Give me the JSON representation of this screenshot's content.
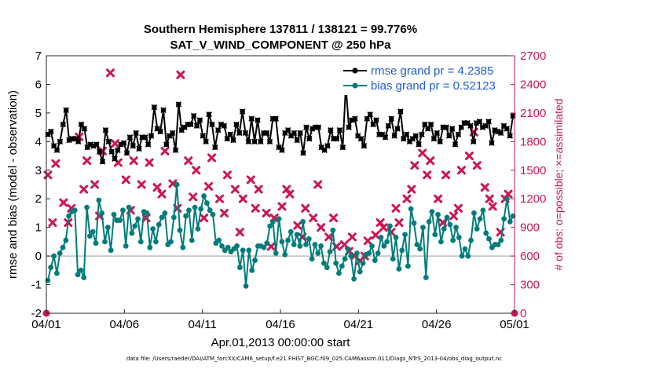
{
  "chart_data": {
    "type": "line",
    "title": "Southern Hemisphere 137811 / 138121 = 99.776%",
    "subtitle": "SAT_V_WIND_COMPONENT @ 250 hPa",
    "xlabel": "Apr.01,2013 00:00:00 start",
    "ylabel": "rmse and bias (model - observation)",
    "y2label": "# of obs: o=possible; ×=assimilated",
    "footnote": "data file: /Users/raeder/DAI/ATM_forcXX/CAM6_setup/f.e21.FHIST_BGC.f09_025.CAM6assim.011/Diags_NTrS_2013-04/obs_diag_output.nc",
    "xlim": [
      0,
      30
    ],
    "ylim": [
      -2,
      7
    ],
    "y2lim": [
      0,
      2700
    ],
    "x_ticks": [
      0,
      5,
      10,
      15,
      20,
      25,
      30
    ],
    "x_tick_labels": [
      "04/01",
      "04/06",
      "04/11",
      "04/16",
      "04/21",
      "04/26",
      "05/01"
    ],
    "y_ticks": [
      -2,
      -1,
      0,
      1,
      2,
      3,
      4,
      5,
      6,
      7
    ],
    "y_tick_labels": [
      "-2",
      "-1",
      "0",
      "1",
      "2",
      "3",
      "4",
      "5",
      "6",
      "7"
    ],
    "y2_ticks": [
      0,
      300,
      600,
      900,
      1200,
      1500,
      1800,
      2100,
      2400,
      2700
    ],
    "y2_tick_labels": [
      "0",
      "300",
      "600",
      "900",
      "1200",
      "1500",
      "1800",
      "2100",
      "2400",
      "2700"
    ],
    "legend_position": "top-right",
    "colors": {
      "rmse": "#000000",
      "bias": "#007c7c",
      "obs": "#cc1655",
      "zero": "#bdbdbd"
    },
    "series": [
      {
        "name": "rmse grand pr = 4.2385",
        "axis": "left",
        "values": [
          4.25,
          4.35,
          3.85,
          3.7,
          4.0,
          4.6,
          5.1,
          4.05,
          4.1,
          4.1,
          4.0,
          4.6,
          4.45,
          3.8,
          3.9,
          3.85,
          3.9,
          3.65,
          3.3,
          4.4,
          4.0,
          3.65,
          3.4,
          3.7,
          3.9,
          3.95,
          3.6,
          4.15,
          3.85,
          4.3,
          3.75,
          4.15,
          4.15,
          3.9,
          4.2,
          5.2,
          4.45,
          4.35,
          5.1,
          3.9,
          4.2,
          4.3,
          3.7,
          5.3,
          4.4,
          4.5,
          4.6,
          4.6,
          4.9,
          4.55,
          4.75,
          4.2,
          4.0,
          4.95,
          4.6,
          3.8,
          4.4,
          4.6,
          4.55,
          4.1,
          4.25,
          4.05,
          4.6,
          4.3,
          5.05,
          4.3,
          4.0,
          4.8,
          4.0,
          4.75,
          4.0,
          4.3,
          4.3,
          4.0,
          4.8,
          4.8,
          3.8,
          3.7,
          4.3,
          4.4,
          4.2,
          4.3,
          4.05,
          4.3,
          3.6,
          4.5,
          4.1,
          4.45,
          4.5,
          4.5,
          3.8,
          3.7,
          3.85,
          4.4,
          4.1,
          4.1,
          4.4,
          3.8,
          5.95,
          4.5,
          4.75,
          4.8,
          4.2,
          4.1,
          3.85,
          4.8,
          4.95,
          4.6,
          4.75,
          4.25,
          4.25,
          4.15,
          4.55,
          4.8,
          4.2,
          4.45,
          5.05,
          4.1,
          4.25,
          4.0,
          4.1,
          4.2,
          3.9,
          4.25,
          4.6,
          4.45,
          4.6,
          4.1,
          4.3,
          4.0,
          4.5,
          4.5,
          4.2,
          4.45,
          3.9,
          4.25,
          4.5,
          4.65,
          4.65,
          4.55,
          4.0,
          4.65,
          4.7,
          4.5,
          4.55,
          4.7,
          3.95,
          4.4,
          4.35,
          4.3,
          4.55,
          4.45,
          4.2,
          4.9
        ]
      },
      {
        "name": "bias grand pr = 0.52123",
        "axis": "left",
        "values": [
          -0.85,
          -0.4,
          0.0,
          -0.6,
          0.1,
          0.3,
          0.55,
          1.4,
          1.55,
          1.6,
          -0.65,
          -0.5,
          -0.75,
          1.7,
          0.7,
          0.85,
          0.45,
          1.95,
          1.5,
          0.5,
          1.0,
          0.2,
          1.45,
          1.25,
          1.25,
          1.6,
          0.35,
          1.7,
          0.8,
          1.05,
          1.3,
          0.5,
          1.55,
          1.5,
          0.3,
          0.95,
          0.5,
          1.1,
          1.35,
          1.5,
          0.4,
          0.5,
          1.35,
          2.5,
          0.9,
          0.3,
          1.4,
          1.6,
          0.55,
          1.7,
          0.95,
          1.65,
          2.1,
          1.85,
          1.6,
          1.45,
          0.45,
          0.55,
          0.35,
          0.2,
          0.3,
          0.15,
          0.25,
          0.35,
          -0.4,
          0.2,
          -1.05,
          0.2,
          -0.5,
          -0.15,
          0.35,
          0.35,
          0.3,
          0.45,
          1.05,
          1.2,
          0.1,
          1.3,
          0.5,
          0.05,
          0.55,
          0.85,
          0.4,
          0.75,
          0.35,
          1.2,
          0.4,
          0.6,
          -0.1,
          0.4,
          0.1,
          0.35,
          -0.25,
          -0.4,
          0.15,
          0.9,
          -0.25,
          -0.6,
          -0.35,
          -0.1,
          0.25,
          0.0,
          -0.8,
          0.1,
          -0.55,
          -0.25,
          0.05,
          0.1,
          0.35,
          -0.15,
          0.1,
          0.65,
          0.35,
          0.5,
          1.05,
          -0.1,
          0.65,
          -0.45,
          0.2,
          0.75,
          -0.35,
          1.65,
          1.15,
          0.4,
          0.25,
          1.0,
          -0.75,
          1.2,
          1.55,
          0.75,
          1.45,
          0.5,
          0.95,
          1.35,
          1.1,
          0.55,
          1.0,
          0.65,
          0.0,
          0.25,
          0.0,
          0.55,
          1.5,
          0.95,
          1.3,
          1.6,
          0.8,
          0.6,
          0.3,
          0.4,
          0.4,
          0.55,
          1.3,
          2.0,
          1.2,
          1.4
        ]
      }
    ],
    "obs_series": [
      {
        "name": "possible",
        "marker": "o",
        "axis": "right",
        "x": [
          0,
          30
        ],
        "values": [
          0,
          0
        ]
      },
      {
        "name": "assimilated",
        "marker": "x",
        "axis": "right",
        "x": [
          0.1,
          0.4,
          0.6,
          1.1,
          1.4,
          1.6,
          2.1,
          2.4,
          2.6,
          3.1,
          3.4,
          3.6,
          4.1,
          4.4,
          4.6,
          5.1,
          5.4,
          5.6,
          6.1,
          6.4,
          6.6,
          7.1,
          7.4,
          7.6,
          8.1,
          8.4,
          8.6,
          9.1,
          9.4,
          9.6,
          10.1,
          10.4,
          10.6,
          11.1,
          11.4,
          11.6,
          12.1,
          12.4,
          12.6,
          13.1,
          13.4,
          13.6,
          14.1,
          14.4,
          14.6,
          15.1,
          15.4,
          15.6,
          16.1,
          16.4,
          16.6,
          17.1,
          17.4,
          17.6,
          18.1,
          18.4,
          18.6,
          19.1,
          19.4,
          19.6,
          19.75,
          20.1,
          20.4,
          20.6,
          21.1,
          21.4,
          21.6,
          22.1,
          22.4,
          22.6,
          23.1,
          23.4,
          23.6,
          24.1,
          24.4,
          24.6,
          25.1,
          25.4,
          25.6,
          26.1,
          26.4,
          26.6,
          27.1,
          27.4,
          27.6,
          28.1,
          28.4,
          28.6,
          29.1,
          29.4,
          29.6
        ],
        "values": [
          1450,
          950,
          1570,
          1160,
          950,
          1100,
          1850,
          1300,
          1600,
          1350,
          1020,
          1700,
          2520,
          1780,
          1580,
          1400,
          1080,
          1600,
          1350,
          1000,
          1580,
          1320,
          1250,
          1700,
          1360,
          1100,
          2500,
          1600,
          1220,
          1500,
          1000,
          1330,
          1630,
          1200,
          1050,
          1450,
          1300,
          850,
          1200,
          1400,
          1100,
          1300,
          1050,
          700,
          1000,
          1120,
          1300,
          1250,
          920,
          800,
          1100,
          1000,
          1350,
          900,
          800,
          1000,
          700,
          720,
          650,
          800,
          600,
          550,
          600,
          760,
          820,
          950,
          900,
          850,
          1100,
          950,
          1200,
          1300,
          1550,
          1680,
          1450,
          1600,
          1200,
          950,
          1450,
          1020,
          1100,
          1500,
          1650,
          1900,
          1550,
          1320,
          1200,
          1120,
          850,
          1200,
          1250
        ]
      }
    ]
  }
}
